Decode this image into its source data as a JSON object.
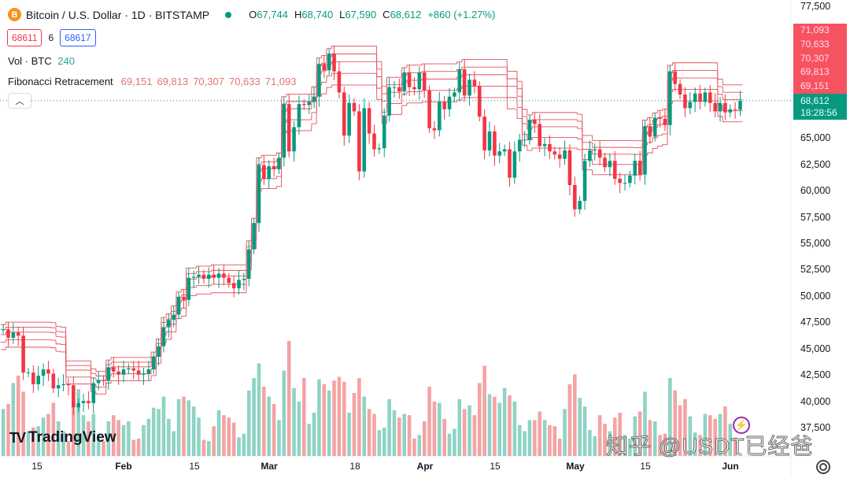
{
  "header": {
    "title": "Bitcoin / U.S. Dollar · 1D · BITSTAMP",
    "icon": "bitcoin-icon",
    "open_label": "O",
    "open": "67,744",
    "high_label": "H",
    "high": "68,740",
    "low_label": "L",
    "low": "67,590",
    "close_label": "C",
    "close": "68,612",
    "change": "+860 (+1.27%)"
  },
  "order": {
    "sell": "68611",
    "spread": "6",
    "buy": "68617"
  },
  "volume_legend": {
    "label": "Vol · BTC",
    "value": "240"
  },
  "fib_legend": {
    "label": "Fibonacci Retracement",
    "values": [
      "69,151",
      "69,813",
      "70,307",
      "70,633",
      "71,093"
    ]
  },
  "price_axis": {
    "labels": [
      "77,500",
      "65,000",
      "62,500",
      "60,000",
      "57,500",
      "55,000",
      "52,500",
      "50,000",
      "47,500",
      "45,000",
      "42,500",
      "40,000",
      "37,500"
    ],
    "fib_tags": [
      "71,093",
      "70,633",
      "70,307",
      "69,813",
      "69,151"
    ],
    "last_price": "68,612",
    "countdown": "18:28:56"
  },
  "time_axis": {
    "labels": [
      "15",
      "Feb",
      "15",
      "Mar",
      "18",
      "Apr",
      "15",
      "May",
      "15",
      "Jun"
    ]
  },
  "branding": {
    "logo": "TradingView",
    "watermark": "知乎 @USDT已经爸"
  },
  "colors": {
    "up": "#089981",
    "down": "#f23645",
    "fib": "#e0505a",
    "vol_up": "#8fd3c4",
    "vol_down": "#f4a3a3"
  },
  "chart_data": {
    "type": "candlestick",
    "ylim": [
      37500,
      77500
    ],
    "months": [
      {
        "month": "2024-01",
        "start_day": 8,
        "close": [
          46900,
          46100,
          46600,
          46300,
          42800,
          42800,
          41700,
          42500,
          43100,
          42700,
          41300,
          41600,
          41700,
          41600,
          39500,
          39900,
          40100,
          39900,
          41800,
          42100,
          42000,
          43300,
          42900,
          42600
        ],
        "volume": [
          3800,
          4200,
          5900,
          6500,
          5200,
          2000,
          2300,
          2400,
          3100,
          3400,
          4300,
          2800,
          2000,
          1200,
          4400,
          5400,
          3300,
          2800,
          3400,
          1800,
          1200,
          2800,
          3300,
          2900
        ]
      },
      {
        "month": "2024-02",
        "start_day": 1,
        "close": [
          43100,
          43200,
          43000,
          42600,
          42700,
          43100,
          44300,
          45300,
          47100,
          47800,
          48300,
          50000,
          49700,
          51800,
          51900,
          52100,
          51700,
          52100,
          51800,
          52200,
          51800,
          51300,
          50800,
          51600,
          51700,
          54500,
          57000,
          62500,
          61200
        ],
        "volume": [
          2500,
          2800,
          1300,
          1400,
          2500,
          3000,
          3900,
          3800,
          4800,
          3000,
          2000,
          4600,
          4800,
          4500,
          4000,
          3100,
          1300,
          1200,
          2400,
          3700,
          3300,
          3100,
          2700,
          1500,
          1800,
          5300,
          6300,
          7500,
          5600
        ]
      },
      {
        "month": "2024-03",
        "start_day": 1,
        "close": [
          62400,
          62100,
          63200,
          68300,
          63800,
          66100,
          68300,
          68200,
          68500,
          69000,
          72100,
          71500,
          73100,
          71400,
          69400,
          65300,
          68400,
          67600,
          61900,
          67900,
          65500,
          64000,
          64100,
          67200,
          69900,
          69900,
          69500,
          71300,
          69900,
          69700,
          71300
        ],
        "volume": [
          4800,
          4200,
          2900,
          6900,
          9300,
          5500,
          4400,
          6300,
          2600,
          3500,
          6200,
          5800,
          5300,
          6100,
          6400,
          6000,
          3500,
          5100,
          6300,
          4800,
          3800,
          3400,
          2100,
          2300,
          4600,
          3700,
          3100,
          3400,
          3300,
          1400,
          1700
        ]
      },
      {
        "month": "2024-04",
        "start_day": 1,
        "close": [
          69600,
          66000,
          65800,
          68500,
          67800,
          69000,
          69400,
          71600,
          69100,
          70600,
          70000,
          67100,
          63900,
          65700,
          63400,
          63800,
          64000,
          61300,
          63800,
          64900,
          64900,
          66800,
          66400,
          64300,
          64500,
          63800,
          63500,
          63100,
          63900,
          60600
        ],
        "volume": [
          2800,
          5600,
          4400,
          4300,
          3000,
          1800,
          2200,
          4600,
          3800,
          4100,
          3300,
          5900,
          7300,
          5000,
          4800,
          4300,
          5500,
          4900,
          4400,
          2500,
          2000,
          2900,
          2900,
          3600,
          2900,
          2500,
          2400,
          1400,
          3800,
          5800
        ]
      },
      {
        "month": "2024-05",
        "start_day": 1,
        "close": [
          58300,
          59100,
          62900,
          63900,
          64000,
          63200,
          62300,
          62900,
          61200,
          60800,
          60800,
          61500,
          62900,
          61600,
          66200,
          65200,
          67000,
          66900,
          66300,
          71400,
          70200,
          69200,
          67900,
          68500,
          69300,
          68500,
          69400,
          68400,
          67600,
          68400,
          67500
        ],
        "volume": [
          6600,
          4700,
          4000,
          2100,
          1600,
          3300,
          2600,
          2000,
          3100,
          3500,
          1700,
          1400,
          3200,
          3600,
          5200,
          2900,
          2800,
          1700,
          1800,
          6300,
          5300,
          4100,
          4600,
          3200,
          1900,
          1700,
          3400,
          3300,
          3000,
          3400,
          4000
        ]
      },
      {
        "month": "2024-06",
        "start_day": 1,
        "close": [
          67800,
          67744,
          68612
        ],
        "volume": [
          2600,
          1500,
          240
        ]
      }
    ]
  }
}
